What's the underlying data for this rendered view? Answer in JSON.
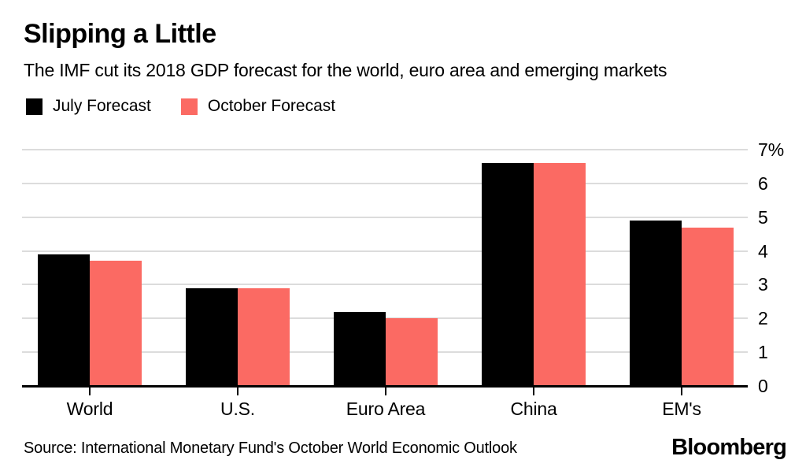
{
  "header": {
    "title": "Slipping a Little",
    "subtitle": "The IMF cut its 2018 GDP forecast for the world, euro area and emerging markets"
  },
  "legend": {
    "items": [
      {
        "label": "July Forecast",
        "color": "#000000"
      },
      {
        "label": "October Forecast",
        "color": "#fb6a63"
      }
    ]
  },
  "chart_data": {
    "type": "bar",
    "title": "Slipping a Little",
    "subtitle": "The IMF cut its 2018 GDP forecast for the world, euro area and emerging markets",
    "categories": [
      "World",
      "U.S.",
      "Euro Area",
      "China",
      "EM's"
    ],
    "series": [
      {
        "name": "July Forecast",
        "color": "#000000",
        "values": [
          3.9,
          2.9,
          2.2,
          6.6,
          4.9
        ]
      },
      {
        "name": "October Forecast",
        "color": "#fb6a63",
        "values": [
          3.7,
          2.9,
          2.0,
          6.6,
          4.7
        ]
      }
    ],
    "unit": "%",
    "ylim": [
      0,
      7
    ],
    "y_tick_labels": [
      "7%",
      "6",
      "5",
      "4",
      "3",
      "2",
      "1",
      "0"
    ],
    "grid": "horizontal",
    "gridline_color": "#dcdcdc",
    "baseline_color": "#000000",
    "legend_position": "top-left",
    "y_axis_side": "right"
  },
  "footer": {
    "source": "Source: International Monetary Fund's October World Economic Outlook",
    "brand": "Bloomberg"
  }
}
